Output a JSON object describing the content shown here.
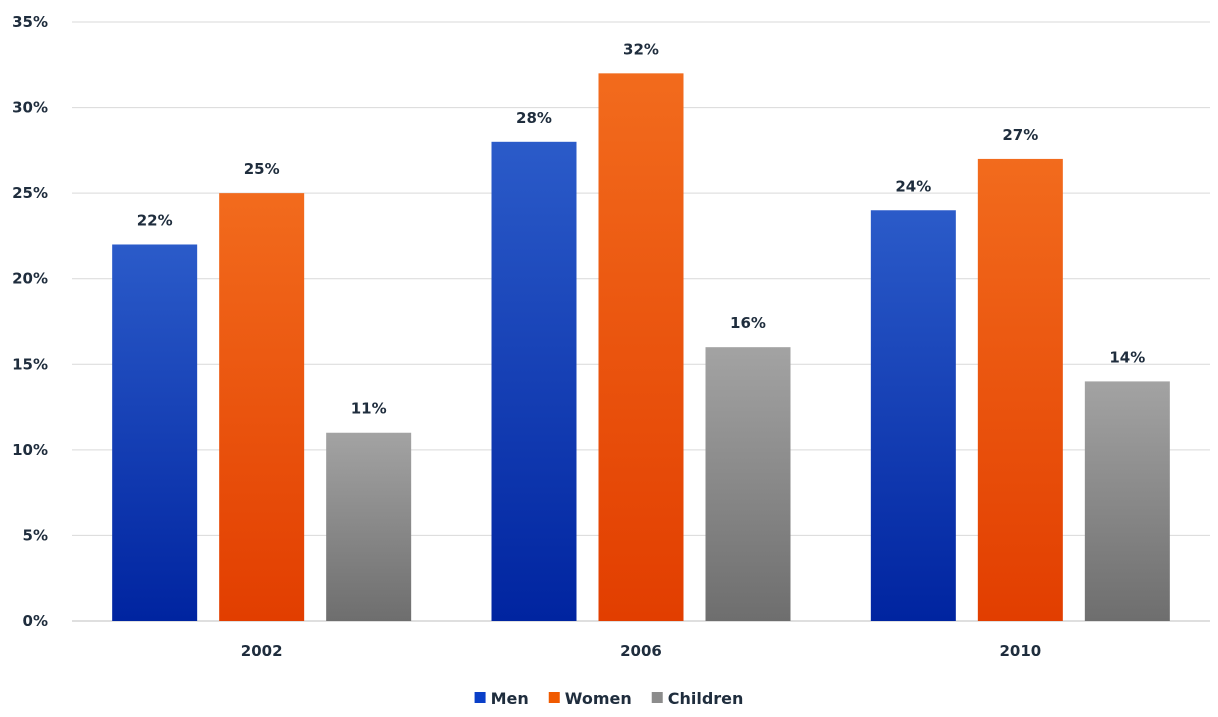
{
  "chart_data": {
    "type": "bar",
    "title": "",
    "xlabel": "",
    "ylabel": "",
    "categories": [
      "2002",
      "2006",
      "2010"
    ],
    "series": [
      {
        "name": "Men",
        "values": [
          22,
          28,
          24
        ],
        "color": "#0a3fc8",
        "color_top": "#2b5bc9",
        "color_bottom": "#0024a0"
      },
      {
        "name": "Women",
        "values": [
          25,
          32,
          27
        ],
        "color": "#f05a00",
        "color_top": "#f26b1d",
        "color_bottom": "#e23e00"
      },
      {
        "name": "Children",
        "values": [
          11,
          16,
          14
        ],
        "color": "#8c8c8c",
        "color_top": "#a3a3a3",
        "color_bottom": "#6e6e6e"
      }
    ],
    "ylim": [
      0,
      35
    ],
    "yticks": [
      0,
      5,
      10,
      15,
      20,
      25,
      30,
      35
    ],
    "tick_suffix": "%",
    "value_suffix": "%",
    "grid": true,
    "legend": "bottom"
  }
}
